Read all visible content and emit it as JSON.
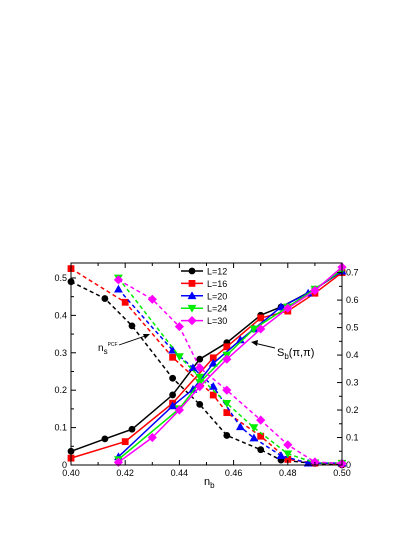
{
  "chart_data": {
    "type": "line",
    "xlabel": "n",
    "xlabel_sub": "b",
    "ylabel_left": "",
    "ylabel_right": "",
    "xlim": [
      0.4,
      0.5
    ],
    "ylim_left": [
      0,
      0.54
    ],
    "ylim_right": [
      0,
      0.735
    ],
    "x_ticks": [
      "0.40",
      "0.42",
      "0.44",
      "0.46",
      "0.48",
      "0.50"
    ],
    "y_ticks_left": [
      "0",
      "0.1",
      "0.2",
      "0.3",
      "0.4",
      "0.5"
    ],
    "y_ticks_right": [
      "0",
      "0.1",
      "0.2",
      "0.3",
      "0.4",
      "0.5",
      "0.6",
      "0.7"
    ],
    "legend_position": "top-center",
    "annotations": {
      "ns_main": "n",
      "ns_sub": "s",
      "ns_sup": "PCF",
      "sb": "S",
      "sb_sub": "b",
      "sb_args": "(π,π)"
    },
    "series": [
      {
        "name": "L=12",
        "color": "#000000",
        "marker": "circle",
        "ns": {
          "x": [
            0.4,
            0.4125,
            0.4225,
            0.4375,
            0.4475,
            0.4575,
            0.47,
            0.4775,
            0.49,
            0.5
          ],
          "y": [
            0.49,
            0.445,
            0.372,
            0.232,
            0.162,
            0.079,
            0.041,
            0.013,
            0.004,
            0.0
          ]
        },
        "sb": {
          "x": [
            0.4,
            0.4125,
            0.4225,
            0.4375,
            0.4475,
            0.4575,
            0.47,
            0.4775,
            0.49,
            0.5
          ],
          "y": [
            0.05,
            0.095,
            0.13,
            0.255,
            0.385,
            0.445,
            0.545,
            0.575,
            0.64,
            0.705
          ]
        }
      },
      {
        "name": "L=16",
        "color": "#ff0000",
        "marker": "square",
        "ns": {
          "x": [
            0.4,
            0.42,
            0.4375,
            0.4525,
            0.4575,
            0.47,
            0.48,
            0.49,
            0.5
          ],
          "y": [
            0.525,
            0.435,
            0.288,
            0.187,
            0.14,
            0.077,
            0.015,
            0.005,
            0.003
          ]
        },
        "sb": {
          "x": [
            0.4,
            0.42,
            0.4375,
            0.4525,
            0.4575,
            0.47,
            0.48,
            0.49,
            0.5
          ],
          "y": [
            0.025,
            0.085,
            0.225,
            0.39,
            0.43,
            0.535,
            0.56,
            0.625,
            0.7
          ]
        }
      },
      {
        "name": "L=20",
        "color": "#0000ff",
        "marker": "triangle-up",
        "ns": {
          "x": [
            0.4175,
            0.4375,
            0.445,
            0.4525,
            0.4625,
            0.4675,
            0.4775,
            0.4875,
            0.5
          ],
          "y": [
            0.47,
            0.307,
            0.26,
            0.21,
            0.102,
            0.072,
            0.025,
            0.005,
            0.005
          ]
        },
        "sb": {
          "x": [
            0.4175,
            0.4375,
            0.445,
            0.4525,
            0.4625,
            0.4675,
            0.4775,
            0.4875,
            0.5
          ],
          "y": [
            0.03,
            0.215,
            0.275,
            0.37,
            0.455,
            0.495,
            0.575,
            0.625,
            0.705
          ]
        }
      },
      {
        "name": "L=24",
        "color": "#00ee00",
        "marker": "triangle-down",
        "ns": {
          "x": [
            0.4175,
            0.44,
            0.4475,
            0.4575,
            0.4675,
            0.48,
            0.49,
            0.5
          ],
          "y": [
            0.5,
            0.29,
            0.235,
            0.165,
            0.1,
            0.03,
            0.006,
            0.005
          ]
        },
        "sb": {
          "x": [
            0.4175,
            0.44,
            0.4475,
            0.4575,
            0.4675,
            0.48,
            0.49,
            0.5
          ],
          "y": [
            0.02,
            0.205,
            0.3,
            0.4,
            0.495,
            0.575,
            0.64,
            0.71
          ]
        }
      },
      {
        "name": "L=30",
        "color": "#ff00ff",
        "marker": "diamond",
        "ns": {
          "x": [
            0.4175,
            0.43,
            0.44,
            0.4475,
            0.4575,
            0.47,
            0.48,
            0.49,
            0.5
          ],
          "y": [
            0.495,
            0.443,
            0.37,
            0.26,
            0.2,
            0.12,
            0.054,
            0.008,
            0.004
          ]
        },
        "sb": {
          "x": [
            0.4175,
            0.43,
            0.44,
            0.4475,
            0.4575,
            0.47,
            0.48,
            0.49,
            0.5
          ],
          "y": [
            0.01,
            0.1,
            0.2,
            0.285,
            0.385,
            0.495,
            0.57,
            0.635,
            0.72
          ]
        }
      }
    ]
  }
}
